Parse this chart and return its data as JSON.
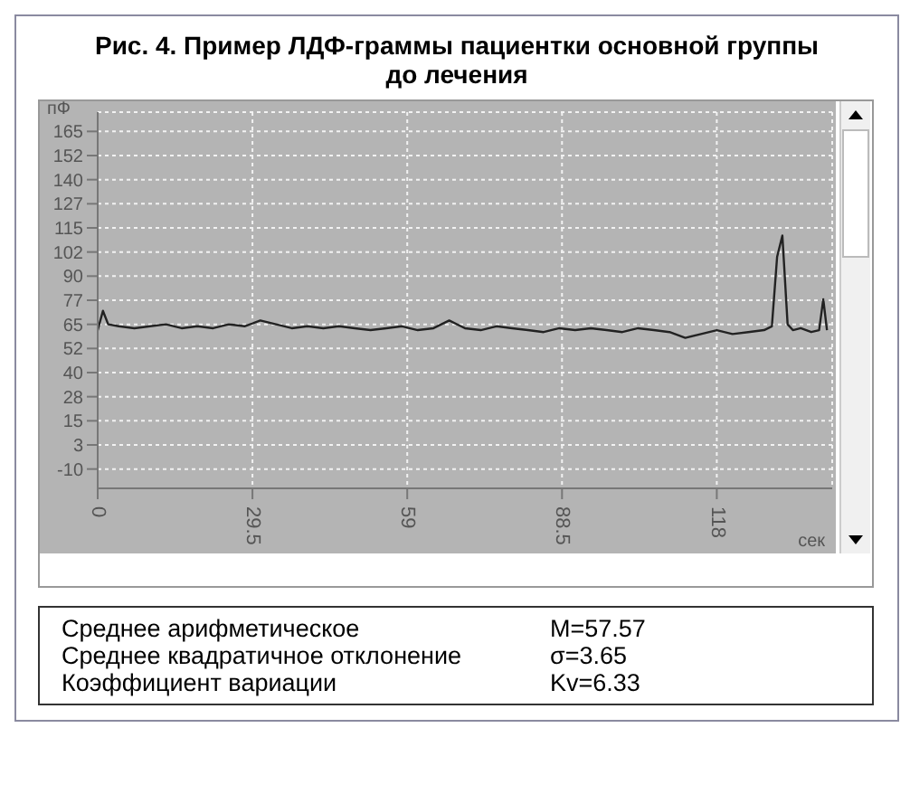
{
  "chart_data": {
    "type": "line",
    "title": "Рис. 4.  Пример ЛДФ-граммы пациентки основной группы до лечения",
    "xlabel": "сек",
    "ylabel": "пФ",
    "x": [
      0,
      1,
      2,
      4,
      7,
      10,
      13,
      16,
      19,
      22,
      25,
      28,
      31,
      34,
      37,
      40,
      43,
      46,
      49,
      52,
      55,
      58,
      61,
      64,
      67,
      70,
      73,
      76,
      79,
      82,
      85,
      88,
      91,
      94,
      97,
      100,
      103,
      106,
      109,
      112,
      115,
      118,
      121,
      124,
      127,
      128.5,
      129.5,
      130.5,
      131.5,
      132.5,
      134,
      136,
      137.5,
      138.3,
      139
    ],
    "series": [
      {
        "color": "#222222",
        "values": [
          62,
          72,
          65,
          64,
          63,
          64,
          65,
          63,
          64,
          63,
          65,
          64,
          67,
          65,
          63,
          64,
          63,
          64,
          63,
          62,
          63,
          64,
          62,
          63,
          67,
          63,
          62,
          64,
          63,
          62,
          61,
          63,
          62,
          63,
          62,
          61,
          63,
          62,
          61,
          58,
          60,
          62,
          60,
          61,
          62,
          64,
          100,
          111,
          65,
          62,
          63,
          61,
          62,
          78,
          62
        ]
      }
    ],
    "xlim": [
      0,
      140
    ],
    "xticks": [
      0,
      29.5,
      59,
      88.5,
      118
    ],
    "ylim": [
      -20,
      175
    ],
    "yticks": [
      {
        "value": -10,
        "label": "-10"
      },
      {
        "value": 2.5,
        "label": "3"
      },
      {
        "value": 15,
        "label": "15"
      },
      {
        "value": 27.5,
        "label": "28"
      },
      {
        "value": 40,
        "label": "40"
      },
      {
        "value": 52.5,
        "label": "52"
      },
      {
        "value": 65,
        "label": "65"
      },
      {
        "value": 77.5,
        "label": "77"
      },
      {
        "value": 90,
        "label": "90"
      },
      {
        "value": 102.5,
        "label": "102"
      },
      {
        "value": 115,
        "label": "115"
      },
      {
        "value": 127.5,
        "label": "127"
      },
      {
        "value": 140,
        "label": "140"
      },
      {
        "value": 152.5,
        "label": "152"
      },
      {
        "value": 165,
        "label": "165"
      }
    ],
    "grid": true,
    "marker": "none",
    "line_style": "solid",
    "legend": false,
    "annotations": [
      "Среднее арифметическое",
      "M=57.57",
      "Среднее квадратичное отклонение",
      "σ=3.65",
      "Коэффициент вариации",
      "Kv=6.33"
    ]
  }
}
